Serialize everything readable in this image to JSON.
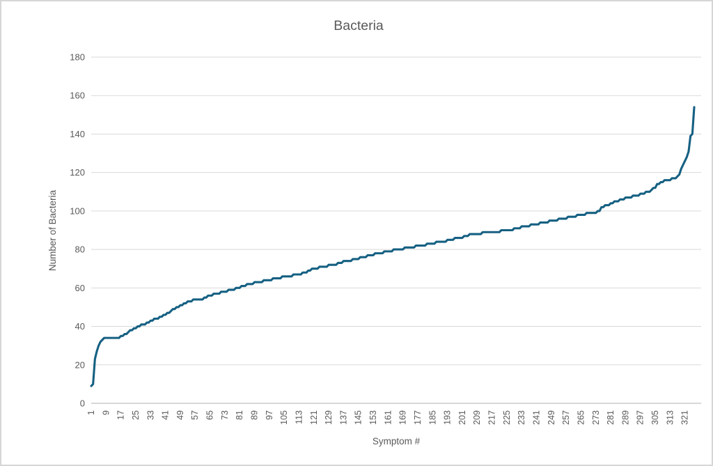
{
  "chart_data": {
    "type": "line",
    "title": "Bacteria",
    "xlabel": "Symptom #",
    "ylabel": "Number of Bacteria",
    "ylim": [
      0,
      180
    ],
    "y_tick_interval": 20,
    "y_tick_labels": [
      "0",
      "20",
      "40",
      "60",
      "80",
      "100",
      "120",
      "140",
      "160",
      "180"
    ],
    "x_tick_labels": [
      "1",
      "9",
      "17",
      "25",
      "33",
      "41",
      "49",
      "57",
      "65",
      "73",
      "81",
      "89",
      "97",
      "105",
      "113",
      "121",
      "129",
      "137",
      "145",
      "153",
      "161",
      "169",
      "177",
      "185",
      "193",
      "201",
      "209",
      "217",
      "225",
      "233",
      "241",
      "249",
      "257",
      "265",
      "273",
      "281",
      "289",
      "297",
      "305",
      "313",
      "321"
    ],
    "x_tick_step": 8,
    "x_start": 1,
    "n_points": 326,
    "grid": "horizontal",
    "legend": "none",
    "colors": {
      "line": "#156082",
      "text": "#595959",
      "gridline": "#D9D9D9",
      "axis": "#BFBFBF",
      "border": "#D6D6D6"
    },
    "series": [
      {
        "name": "Bacteria",
        "values": [
          9,
          10,
          23,
          27,
          30,
          32,
          33,
          34,
          34,
          34,
          34,
          34,
          34,
          34,
          34,
          34,
          35,
          35,
          36,
          36,
          37,
          38,
          38,
          39,
          39,
          40,
          40,
          41,
          41,
          41,
          42,
          42,
          43,
          43,
          44,
          44,
          44,
          45,
          45,
          46,
          46,
          47,
          47,
          48,
          49,
          49,
          50,
          50,
          51,
          51,
          52,
          52,
          53,
          53,
          53,
          54,
          54,
          54,
          54,
          54,
          54,
          55,
          55,
          56,
          56,
          56,
          57,
          57,
          57,
          57,
          58,
          58,
          58,
          58,
          59,
          59,
          59,
          59,
          60,
          60,
          60,
          61,
          61,
          61,
          62,
          62,
          62,
          62,
          63,
          63,
          63,
          63,
          63,
          64,
          64,
          64,
          64,
          64,
          65,
          65,
          65,
          65,
          65,
          66,
          66,
          66,
          66,
          66,
          66,
          67,
          67,
          67,
          67,
          67,
          68,
          68,
          68,
          69,
          69,
          70,
          70,
          70,
          70,
          71,
          71,
          71,
          71,
          71,
          72,
          72,
          72,
          72,
          72,
          73,
          73,
          73,
          74,
          74,
          74,
          74,
          74,
          75,
          75,
          75,
          75,
          76,
          76,
          76,
          76,
          77,
          77,
          77,
          77,
          78,
          78,
          78,
          78,
          78,
          79,
          79,
          79,
          79,
          79,
          80,
          80,
          80,
          80,
          80,
          80,
          81,
          81,
          81,
          81,
          81,
          81,
          82,
          82,
          82,
          82,
          82,
          82,
          83,
          83,
          83,
          83,
          83,
          84,
          84,
          84,
          84,
          84,
          84,
          85,
          85,
          85,
          85,
          86,
          86,
          86,
          86,
          86,
          87,
          87,
          87,
          88,
          88,
          88,
          88,
          88,
          88,
          88,
          89,
          89,
          89,
          89,
          89,
          89,
          89,
          89,
          89,
          89,
          90,
          90,
          90,
          90,
          90,
          90,
          90,
          91,
          91,
          91,
          91,
          92,
          92,
          92,
          92,
          92,
          93,
          93,
          93,
          93,
          93,
          94,
          94,
          94,
          94,
          94,
          95,
          95,
          95,
          95,
          95,
          96,
          96,
          96,
          96,
          96,
          97,
          97,
          97,
          97,
          97,
          98,
          98,
          98,
          98,
          98,
          99,
          99,
          99,
          99,
          99,
          99,
          100,
          100,
          102,
          102,
          103,
          103,
          103,
          104,
          104,
          105,
          105,
          105,
          106,
          106,
          106,
          107,
          107,
          107,
          107,
          108,
          108,
          108,
          108,
          109,
          109,
          109,
          110,
          110,
          110,
          111,
          112,
          112,
          114,
          114,
          115,
          115,
          116,
          116,
          116,
          116,
          117,
          117,
          117,
          118,
          119,
          122,
          124,
          126,
          128,
          131,
          139,
          140,
          154
        ]
      }
    ]
  }
}
